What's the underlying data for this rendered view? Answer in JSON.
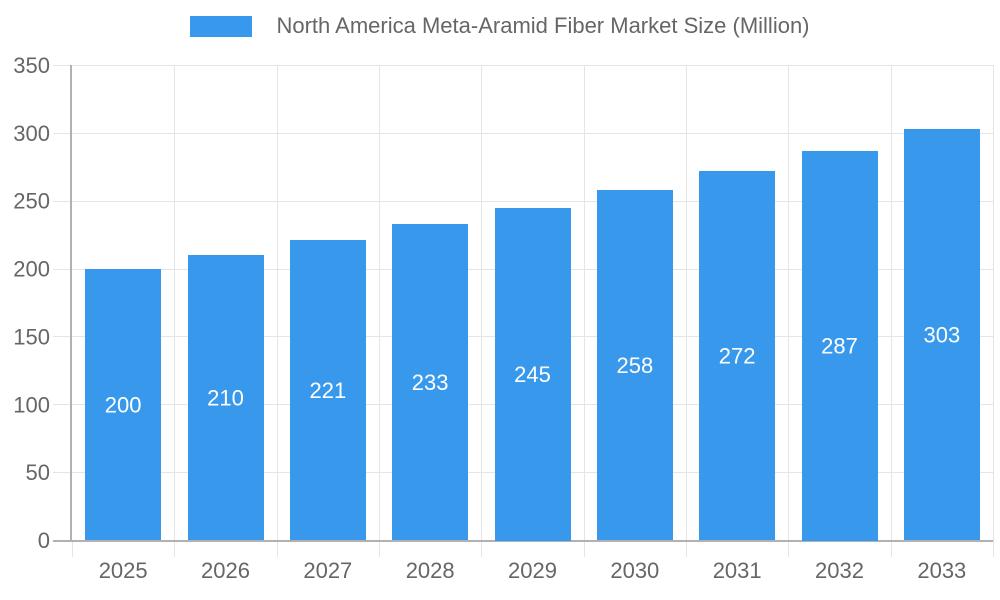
{
  "legend": {
    "label": "North America Meta-Aramid Fiber Market Size (Million)"
  },
  "chart_data": {
    "type": "bar",
    "title": "North America Meta-Aramid Fiber Market Size (Million)",
    "categories": [
      "2025",
      "2026",
      "2027",
      "2028",
      "2029",
      "2030",
      "2031",
      "2032",
      "2033"
    ],
    "values": [
      200,
      210,
      221,
      233,
      245,
      258,
      272,
      287,
      303
    ],
    "xlabel": "",
    "ylabel": "",
    "ylim": [
      0,
      350
    ],
    "ytick_step": 50,
    "ytick_labels": [
      "0",
      "50",
      "100",
      "150",
      "200",
      "250",
      "300",
      "350"
    ],
    "grid": true,
    "legend_position": "top",
    "value_label_position": "inside-center",
    "colors": {
      "bar": "#3899ec",
      "value_label": "#ffffff",
      "axis_text": "#666666",
      "grid_line": "#e5e5e5",
      "axis_border": "#b1b1b1",
      "background": "#ffffff"
    }
  }
}
